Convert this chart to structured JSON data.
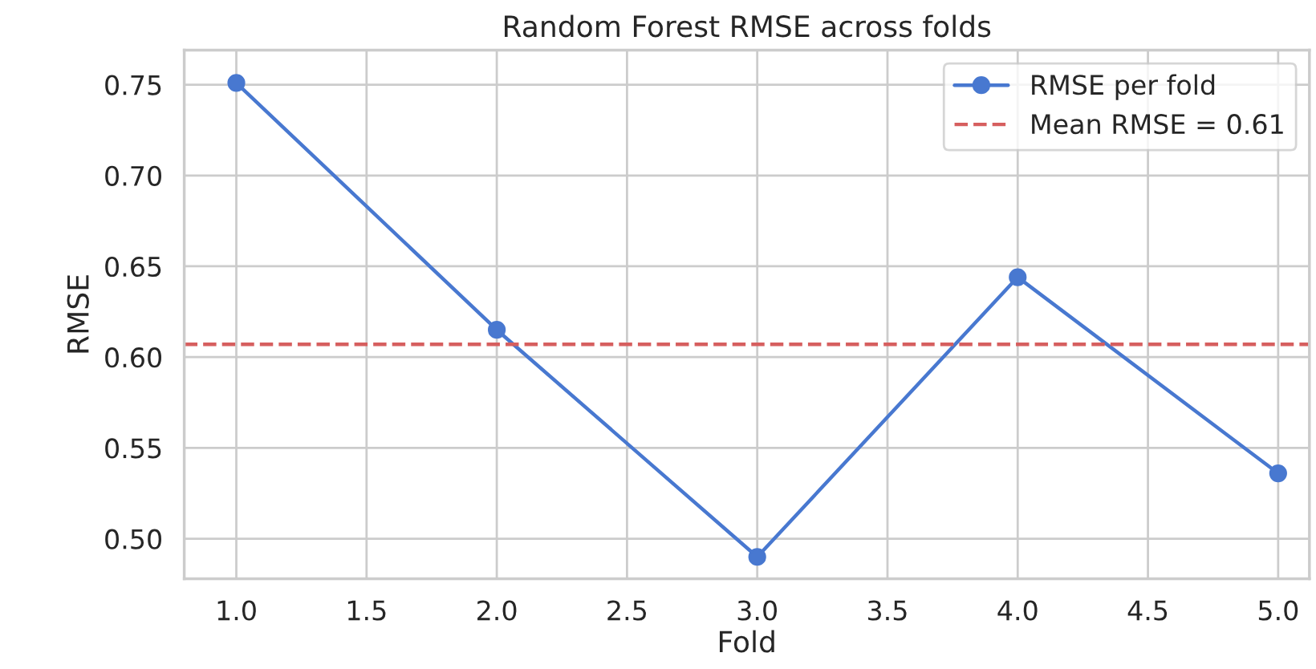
{
  "chart_data": {
    "type": "line",
    "title": "Random Forest RMSE across folds",
    "xlabel": "Fold",
    "ylabel": "RMSE",
    "x": [
      1,
      2,
      3,
      4,
      5
    ],
    "series": [
      {
        "name": "RMSE per fold",
        "color": "#4878d0",
        "values": [
          0.751,
          0.615,
          0.49,
          0.644,
          0.536
        ]
      }
    ],
    "ref_lines": [
      {
        "axis": "y",
        "value": 0.607,
        "label": "Mean RMSE = 0.61",
        "color": "#d65f5f",
        "line_style": "dashed"
      }
    ],
    "xlim": [
      0.8,
      5.12
    ],
    "xticks": [
      {
        "value": 1,
        "label": "1.0"
      },
      {
        "value": 1.5,
        "label": "1.5"
      },
      {
        "value": 2,
        "label": "2.0"
      },
      {
        "value": 2.5,
        "label": "2.5"
      },
      {
        "value": 3,
        "label": "3.0"
      },
      {
        "value": 3.5,
        "label": "3.5"
      },
      {
        "value": 4,
        "label": "4.0"
      },
      {
        "value": 4.5,
        "label": "4.5"
      },
      {
        "value": 5,
        "label": "5.0"
      }
    ],
    "ylim": [
      0.478,
      0.769
    ],
    "yticks": [
      {
        "value": 0.5,
        "label": "0.50"
      },
      {
        "value": 0.55,
        "label": "0.55"
      },
      {
        "value": 0.6,
        "label": "0.60"
      },
      {
        "value": 0.65,
        "label": "0.65"
      },
      {
        "value": 0.7,
        "label": "0.70"
      },
      {
        "value": 0.75,
        "label": "0.75"
      }
    ],
    "grid": true,
    "legend": "top right",
    "marker": "circle",
    "line_style": "solid"
  }
}
